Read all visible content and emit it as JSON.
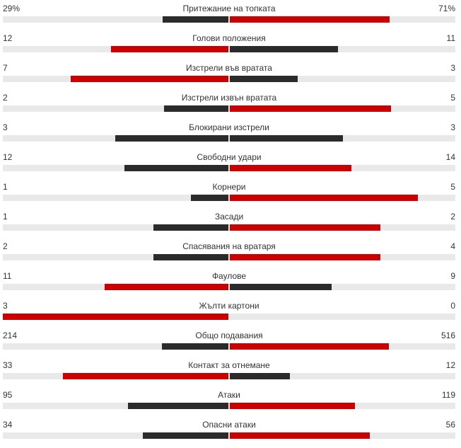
{
  "colors": {
    "leader": "#cc0000",
    "trailer": "#2b2b2b",
    "track": "#e9e9e9"
  },
  "stats": [
    {
      "label": "Притежание на топката",
      "home": "29%",
      "away": "71%",
      "home_num": 29,
      "away_num": 71
    },
    {
      "label": "Голови положения",
      "home": "12",
      "away": "11",
      "home_num": 12,
      "away_num": 11
    },
    {
      "label": "Изстрели във вратата",
      "home": "7",
      "away": "3",
      "home_num": 7,
      "away_num": 3
    },
    {
      "label": "Изстрели извън вратата",
      "home": "2",
      "away": "5",
      "home_num": 2,
      "away_num": 5
    },
    {
      "label": "Блокирани изстрели",
      "home": "3",
      "away": "3",
      "home_num": 3,
      "away_num": 3
    },
    {
      "label": "Свободни удари",
      "home": "12",
      "away": "14",
      "home_num": 12,
      "away_num": 14
    },
    {
      "label": "Корнери",
      "home": "1",
      "away": "5",
      "home_num": 1,
      "away_num": 5
    },
    {
      "label": "Засади",
      "home": "1",
      "away": "2",
      "home_num": 1,
      "away_num": 2
    },
    {
      "label": "Спасявания на вратаря",
      "home": "2",
      "away": "4",
      "home_num": 2,
      "away_num": 4
    },
    {
      "label": "Фаулове",
      "home": "11",
      "away": "9",
      "home_num": 11,
      "away_num": 9
    },
    {
      "label": "Жълти картони",
      "home": "3",
      "away": "0",
      "home_num": 3,
      "away_num": 0
    },
    {
      "label": "Общо подавания",
      "home": "214",
      "away": "516",
      "home_num": 214,
      "away_num": 516
    },
    {
      "label": "Контакт за отнемане",
      "home": "33",
      "away": "12",
      "home_num": 33,
      "away_num": 12
    },
    {
      "label": "Атаки",
      "home": "95",
      "away": "119",
      "home_num": 95,
      "away_num": 119
    },
    {
      "label": "Опасни атаки",
      "home": "34",
      "away": "56",
      "home_num": 34,
      "away_num": 56
    }
  ]
}
